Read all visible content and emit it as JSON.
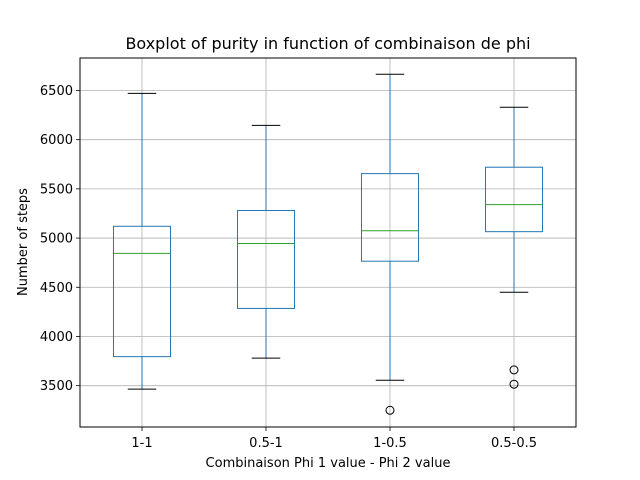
{
  "chart_data": {
    "type": "boxplot",
    "title": "Boxplot of purity in function of combinaison de phi",
    "xlabel": "Combinaison Phi 1 value - Phi 2 value",
    "ylabel": "Number of steps",
    "categories": [
      "1-1",
      "0.5-1",
      "1-0.5",
      "0.5-0.5"
    ],
    "ylim": [
      3080,
      6830
    ],
    "yticks": [
      3500,
      4000,
      4500,
      5000,
      5500,
      6000,
      6500
    ],
    "grid": true,
    "boxes": [
      {
        "category": "1-1",
        "whislo": 3465,
        "q1": 3795,
        "med": 4845,
        "q3": 5120,
        "whishi": 6470,
        "fliers": []
      },
      {
        "category": "0.5-1",
        "whislo": 3780,
        "q1": 4285,
        "med": 4945,
        "q3": 5280,
        "whishi": 6145,
        "fliers": []
      },
      {
        "category": "1-0.5",
        "whislo": 3555,
        "q1": 4765,
        "med": 5075,
        "q3": 5655,
        "whishi": 6665,
        "fliers": [
          3250
        ]
      },
      {
        "category": "0.5-0.5",
        "whislo": 4450,
        "q1": 5065,
        "med": 5340,
        "q3": 5720,
        "whishi": 6330,
        "fliers": [
          3660,
          3515
        ]
      }
    ],
    "colors": {
      "box": "#1f77b4",
      "median": "#2ca02c",
      "whisker_cap": "#000000",
      "grid": "#b0b0b0"
    }
  }
}
